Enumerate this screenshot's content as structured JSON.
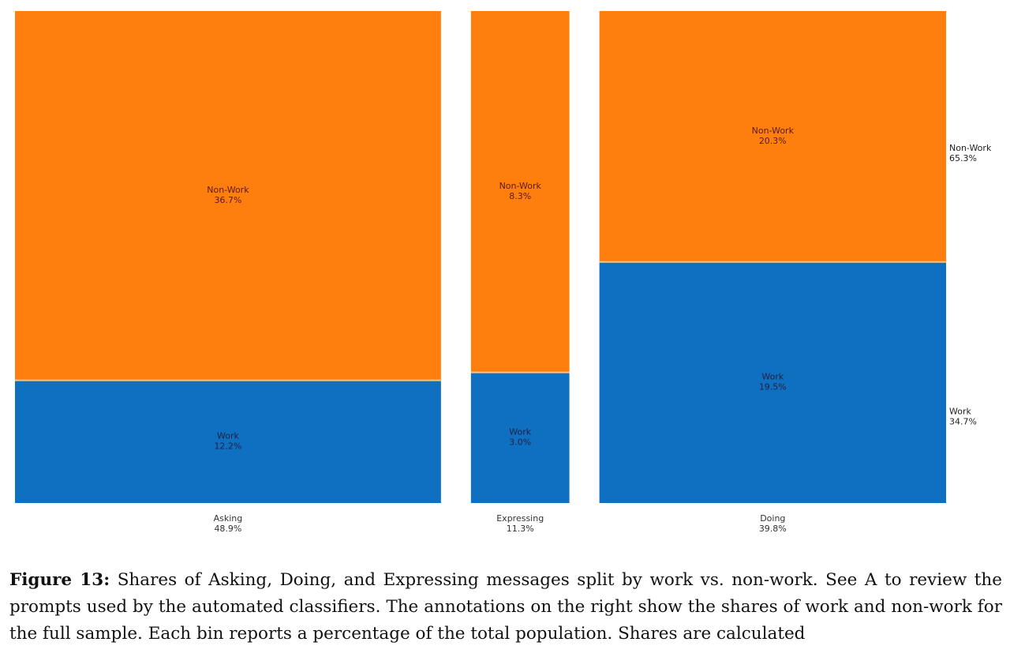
{
  "chart_data": {
    "type": "mosaic",
    "categories": [
      {
        "name": "Asking",
        "share": "48.9%",
        "value": 48.9
      },
      {
        "name": "Expressing",
        "share": "11.3%",
        "value": 11.3
      },
      {
        "name": "Doing",
        "share": "39.8%",
        "value": 39.8
      }
    ],
    "series": [
      {
        "name": "Work",
        "color": "#0f6fc0",
        "cells": [
          {
            "label": "Work",
            "text": "12.2%",
            "value": 12.2
          },
          {
            "label": "Work",
            "text": "3.0%",
            "value": 3.0
          },
          {
            "label": "Work",
            "text": "19.5%",
            "value": 19.5
          }
        ]
      },
      {
        "name": "Non-Work",
        "color": "#ff7f0e",
        "cells": [
          {
            "label": "Non-Work",
            "text": "36.7%",
            "value": 36.7
          },
          {
            "label": "Non-Work",
            "text": "8.3%",
            "value": 8.3
          },
          {
            "label": "Non-Work",
            "text": "20.3%",
            "value": 20.3
          }
        ]
      }
    ],
    "totals": [
      {
        "name": "Non-Work",
        "share": "65.3%"
      },
      {
        "name": "Work",
        "share": "34.7%"
      }
    ]
  },
  "caption": {
    "label": "Figure 13:",
    "text": "Shares of Asking, Doing, and Expressing messages split by work vs. non-work. See A to review the prompts used by the automated classifiers. The annotations on the right show the shares of work and non-work for the full sample. Each bin reports a percentage of the total population. Shares are calculated"
  }
}
